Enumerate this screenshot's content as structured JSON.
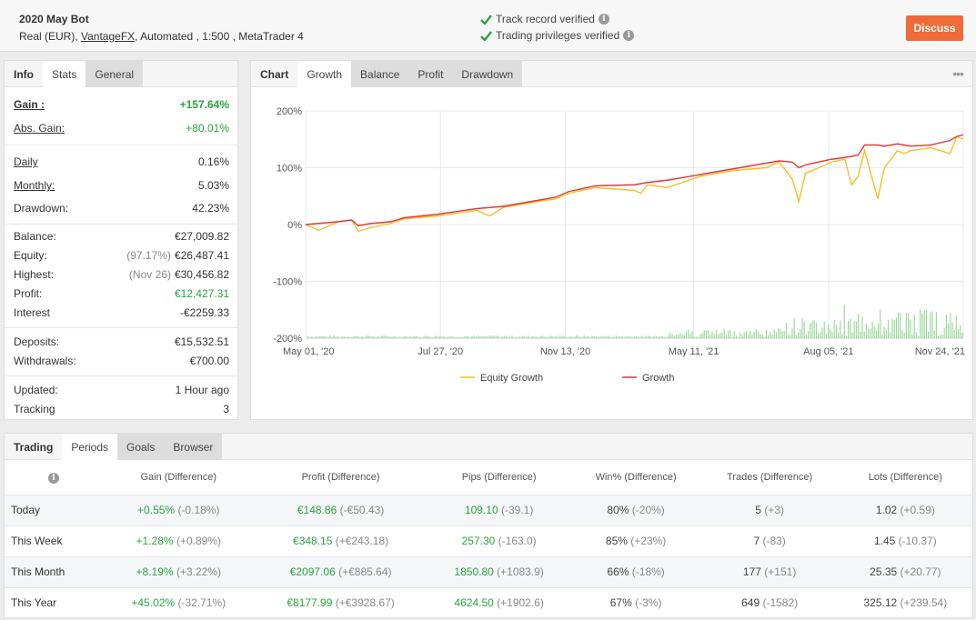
{
  "header": {
    "title": "2020 May Bot",
    "account_prefix": "Real (EUR), ",
    "broker": "VantageFX",
    "account_suffix": ", Automated , 1:500 , MetaTrader 4",
    "verify_track": "Track record verified",
    "verify_privileges": "Trading privileges verified",
    "discuss_label": "Discuss"
  },
  "info_tabs": [
    "Info",
    "Stats",
    "General"
  ],
  "stats": {
    "gain_label": "Gain :",
    "gain": "+157.64%",
    "abs_gain_label": "Abs. Gain:",
    "abs_gain": "+80.01%",
    "daily_label": "Daily",
    "daily": "0.16%",
    "monthly_label": "Monthly:",
    "monthly": "5.03%",
    "drawdown_label": "Drawdown:",
    "drawdown": "42.23%",
    "balance_label": "Balance:",
    "balance": "€27,009.82",
    "equity_label": "Equity:",
    "equity_pct": "(97.17%)",
    "equity": "€26,487.41",
    "highest_label": "Highest:",
    "highest_date": "(Nov 26)",
    "highest": "€30,456.82",
    "profit_label": "Profit:",
    "profit": "€12,427.31",
    "interest_label": "Interest",
    "interest": "-€2259.33",
    "deposits_label": "Deposits:",
    "deposits": "€15,532.51",
    "withdrawals_label": "Withdrawals:",
    "withdrawals": "€700.00",
    "updated_label": "Updated:",
    "updated": "1 Hour ago",
    "tracking_label": "Tracking",
    "tracking": "3"
  },
  "chart_tabs": [
    "Chart",
    "Growth",
    "Balance",
    "Profit",
    "Drawdown"
  ],
  "chart_data": {
    "type": "line",
    "x_ticks": [
      "May 01, '20",
      "Jul 27, '20",
      "Nov 13, '20",
      "May 11, '21",
      "Aug 05, '21",
      "Nov 24, '21"
    ],
    "y_ticks": [
      "200%",
      "100%",
      "0%",
      "-100%",
      "-200%"
    ],
    "ylim": [
      -200,
      200
    ],
    "grid": true,
    "legend_position": "bottom",
    "series": [
      {
        "name": "Equity Growth",
        "color": "#f5c024",
        "x": [
          0,
          0.02,
          0.05,
          0.07,
          0.08,
          0.1,
          0.13,
          0.15,
          0.2,
          0.26,
          0.28,
          0.3,
          0.35,
          0.38,
          0.4,
          0.44,
          0.5,
          0.51,
          0.52,
          0.55,
          0.6,
          0.65,
          0.7,
          0.72,
          0.74,
          0.75,
          0.76,
          0.8,
          0.82,
          0.83,
          0.84,
          0.85,
          0.87,
          0.88,
          0.9,
          0.91,
          0.92,
          0.95,
          0.98,
          0.99,
          1.0
        ],
        "values": [
          0,
          -10,
          5,
          8,
          -12,
          -5,
          2,
          10,
          15,
          25,
          15,
          30,
          40,
          45,
          55,
          65,
          60,
          55,
          70,
          65,
          85,
          95,
          100,
          110,
          80,
          40,
          90,
          110,
          115,
          70,
          85,
          130,
          45,
          100,
          130,
          125,
          130,
          135,
          125,
          155,
          150
        ]
      },
      {
        "name": "Growth",
        "color": "#e0393e",
        "x": [
          0,
          0.02,
          0.05,
          0.07,
          0.08,
          0.1,
          0.13,
          0.15,
          0.2,
          0.26,
          0.28,
          0.3,
          0.35,
          0.38,
          0.4,
          0.44,
          0.5,
          0.51,
          0.52,
          0.55,
          0.6,
          0.65,
          0.7,
          0.72,
          0.74,
          0.75,
          0.76,
          0.8,
          0.82,
          0.83,
          0.84,
          0.85,
          0.87,
          0.88,
          0.9,
          0.91,
          0.92,
          0.95,
          0.98,
          0.99,
          1.0
        ],
        "values": [
          0,
          2,
          5,
          8,
          -2,
          2,
          5,
          12,
          18,
          28,
          30,
          32,
          42,
          48,
          58,
          68,
          70,
          72,
          74,
          78,
          88,
          98,
          108,
          112,
          110,
          100,
          105,
          115,
          118,
          120,
          122,
          140,
          140,
          138,
          142,
          140,
          138,
          140,
          148,
          155,
          158
        ]
      }
    ]
  },
  "trading_tabs": [
    "Trading",
    "Periods",
    "Goals",
    "Browser"
  ],
  "periods": {
    "headers": [
      "Gain (Difference)",
      "Profit (Difference)",
      "Pips (Difference)",
      "Win% (Difference)",
      "Trades (Difference)",
      "Lots (Difference)"
    ],
    "rows": [
      {
        "label": "Today",
        "gain": "+0.55%",
        "gain_d": "(-0.18%)",
        "profit": "€148.86",
        "profit_d": "(-€50.43)",
        "pips": "109.10",
        "pips_d": "(-39.1)",
        "win": "80%",
        "win_d": "(-20%)",
        "trades": "5",
        "trades_d": "(+3)",
        "lots": "1.02",
        "lots_d": "(+0.59)"
      },
      {
        "label": "This Week",
        "gain": "+1.28%",
        "gain_d": "(+0.89%)",
        "profit": "€348.15",
        "profit_d": "(+€243.18)",
        "pips": "257.30",
        "pips_d": "(-163.0)",
        "win": "85%",
        "win_d": "(+23%)",
        "trades": "7",
        "trades_d": "(-83)",
        "lots": "1.45",
        "lots_d": "(-10.37)"
      },
      {
        "label": "This Month",
        "gain": "+8.19%",
        "gain_d": "(+3.22%)",
        "profit": "€2097.06",
        "profit_d": "(+€885.64)",
        "pips": "1850.80",
        "pips_d": "(+1083.9)",
        "win": "66%",
        "win_d": "(-18%)",
        "trades": "177",
        "trades_d": "(+151)",
        "lots": "25.35",
        "lots_d": "(+20.77)"
      },
      {
        "label": "This Year",
        "gain": "+45.02%",
        "gain_d": "(-32.71%)",
        "profit": "€8177.99",
        "profit_d": "(+€3928.67)",
        "pips": "4624.50",
        "pips_d": "(+1902.6)",
        "win": "67%",
        "win_d": "(-3%)",
        "trades": "649",
        "trades_d": "(-1582)",
        "lots": "325.12",
        "lots_d": "(+239.54)"
      }
    ]
  }
}
